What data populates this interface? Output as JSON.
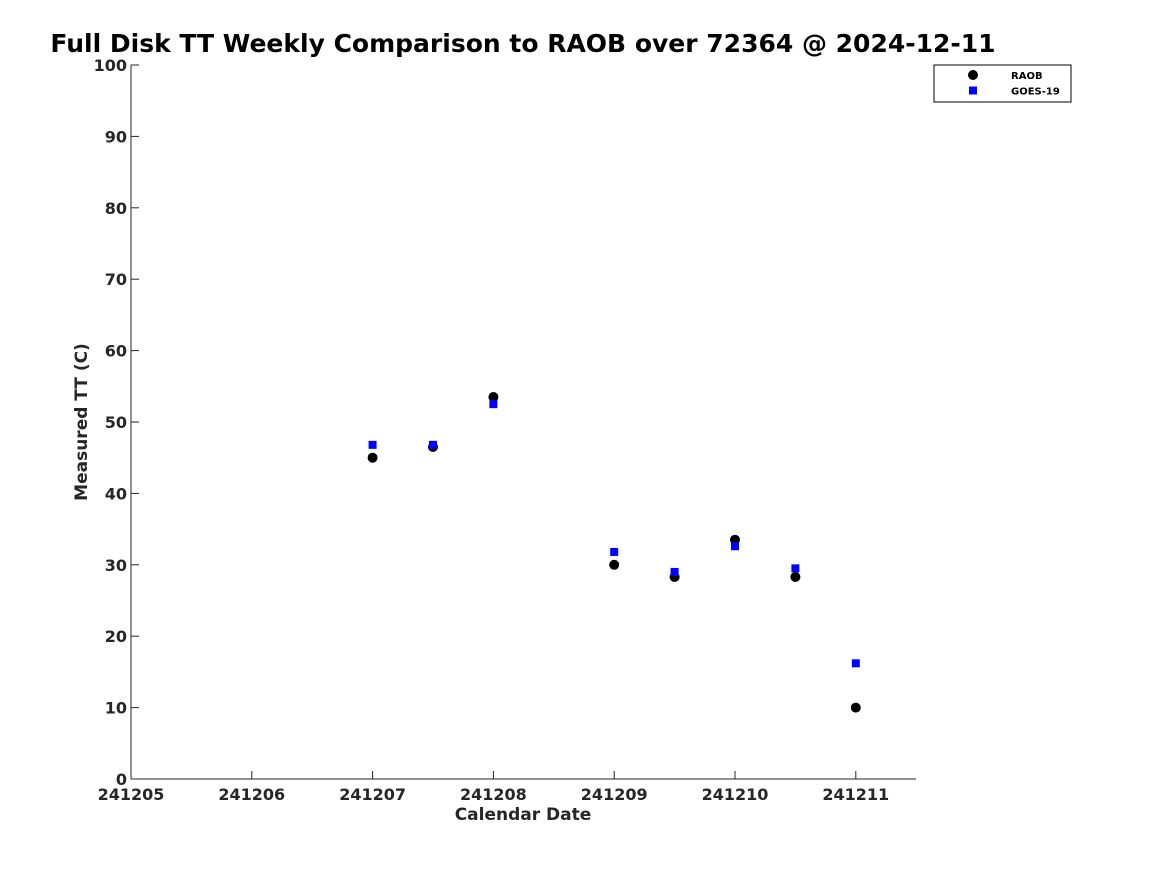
{
  "chart_data": {
    "type": "scatter",
    "title": "Full Disk TT Weekly Comparison to RAOB over 72364 @ 2024-12-11",
    "xlabel": "Calendar Date",
    "ylabel": "Measured TT (C)",
    "xlim": [
      0,
      6.5
    ],
    "ylim": [
      0,
      100
    ],
    "x_tick_labels": [
      "241205",
      "241206",
      "241207",
      "241208",
      "241209",
      "241210",
      "241211"
    ],
    "y_ticks": [
      0,
      10,
      20,
      30,
      40,
      50,
      60,
      70,
      80,
      90,
      100
    ],
    "legend_position": "top-right",
    "series": [
      {
        "name": "RAOB",
        "marker": "circle",
        "color": "#000000",
        "x": [
          2,
          2.5,
          3,
          4,
          4.5,
          5,
          5.5,
          6
        ],
        "values": [
          45,
          46.5,
          53.5,
          30,
          28.3,
          33.5,
          28.3,
          10
        ]
      },
      {
        "name": "GOES-19",
        "marker": "square",
        "color": "#0000ff",
        "x": [
          2,
          2.5,
          3,
          4,
          4.5,
          5,
          5.5,
          6
        ],
        "values": [
          46.8,
          46.8,
          52.5,
          31.8,
          29,
          32.6,
          29.5,
          16.2
        ]
      }
    ]
  }
}
